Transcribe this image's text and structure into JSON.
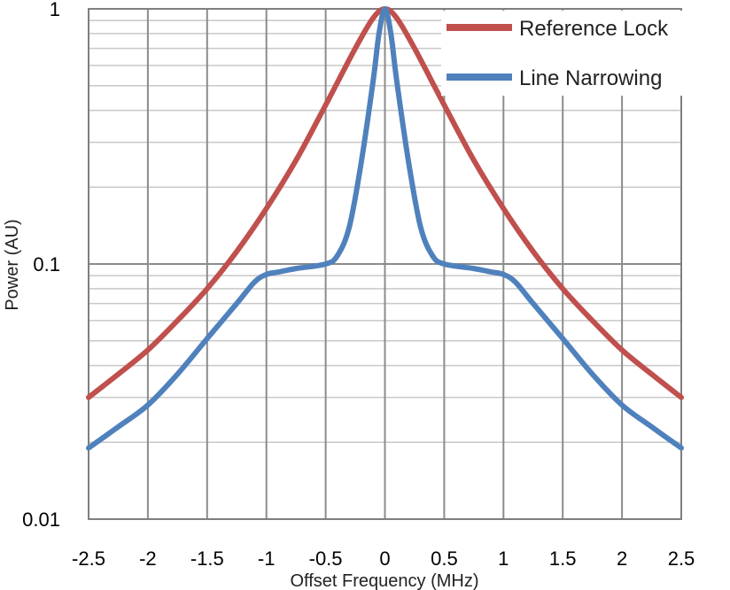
{
  "chart_data": {
    "type": "line",
    "title": "",
    "xlabel": "Offset Frequency (MHz)",
    "ylabel": "Power (AU)",
    "xlim": [
      -2.5,
      2.5
    ],
    "ylim": [
      0.01,
      1
    ],
    "yscale": "log",
    "grid": true,
    "legend_position": "top-right",
    "x_ticks": [
      {
        "value": -2.5,
        "label": "-2.5"
      },
      {
        "value": -2,
        "label": "-2"
      },
      {
        "value": -1.5,
        "label": "-1.5"
      },
      {
        "value": -1,
        "label": "-1"
      },
      {
        "value": -0.5,
        "label": "-0.5"
      },
      {
        "value": 0,
        "label": "0"
      },
      {
        "value": 0.5,
        "label": "0.5"
      },
      {
        "value": 1,
        "label": "1"
      },
      {
        "value": 1.5,
        "label": "1.5"
      },
      {
        "value": 2,
        "label": "2"
      },
      {
        "value": 2.5,
        "label": "2.5"
      }
    ],
    "y_ticks": [
      {
        "value": 0.01,
        "label": "0.01"
      },
      {
        "value": 0.1,
        "label": "0.1"
      },
      {
        "value": 1,
        "label": "1"
      }
    ],
    "series": [
      {
        "name": "Reference Lock",
        "color": "#c0504d",
        "x": [
          -2.5,
          -2.25,
          -2.0,
          -1.75,
          -1.5,
          -1.25,
          -1.0,
          -0.75,
          -0.5,
          -0.25,
          -0.1,
          0.0,
          0.1,
          0.25,
          0.5,
          0.75,
          1.0,
          1.25,
          1.5,
          1.75,
          2.0,
          2.25,
          2.5
        ],
        "values": [
          0.03,
          0.037,
          0.046,
          0.06,
          0.08,
          0.112,
          0.165,
          0.255,
          0.42,
          0.7,
          0.92,
          1.0,
          0.92,
          0.7,
          0.42,
          0.255,
          0.165,
          0.112,
          0.08,
          0.06,
          0.046,
          0.037,
          0.03
        ]
      },
      {
        "name": "Line Narrowing",
        "color": "#4f81bd",
        "x": [
          -2.5,
          -2.25,
          -2.0,
          -1.75,
          -1.5,
          -1.25,
          -1.1,
          -1.0,
          -0.9,
          -0.75,
          -0.5,
          -0.4,
          -0.3,
          -0.2,
          -0.1,
          -0.05,
          0.0,
          0.05,
          0.1,
          0.2,
          0.3,
          0.4,
          0.5,
          0.75,
          0.9,
          1.0,
          1.1,
          1.25,
          1.5,
          1.75,
          2.0,
          2.25,
          2.5
        ],
        "values": [
          0.019,
          0.023,
          0.028,
          0.037,
          0.051,
          0.07,
          0.085,
          0.091,
          0.093,
          0.096,
          0.1,
          0.108,
          0.14,
          0.25,
          0.52,
          0.8,
          1.0,
          0.8,
          0.52,
          0.25,
          0.14,
          0.108,
          0.1,
          0.096,
          0.093,
          0.091,
          0.085,
          0.07,
          0.051,
          0.037,
          0.028,
          0.023,
          0.019
        ]
      }
    ]
  }
}
